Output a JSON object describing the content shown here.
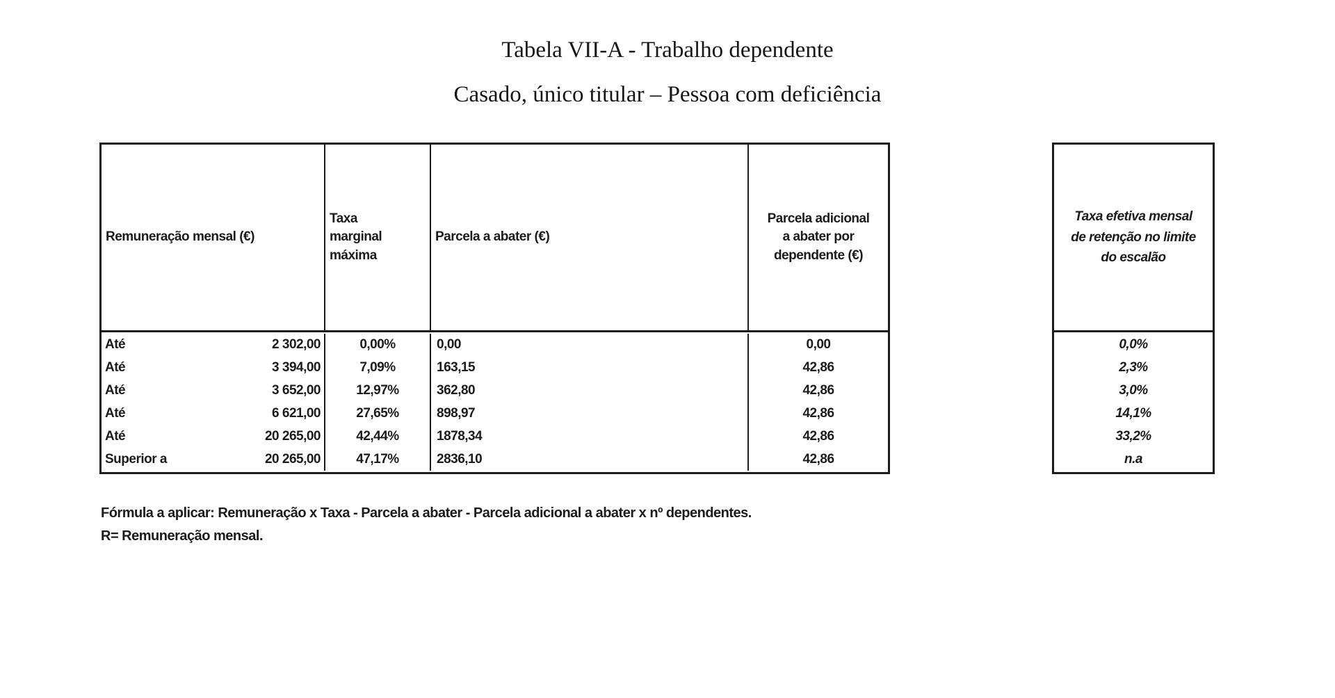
{
  "page": {
    "title": "Tabela VII-A - Trabalho dependente",
    "subtitle": "Casado, único titular – Pessoa com deficiência"
  },
  "main_table": {
    "headers": {
      "remuneration": "Remuneração mensal (€)",
      "marginal_rate": "Taxa\nmarginal\nmáxima",
      "deduction": "Parcela a abater (€)",
      "dependent_deduction": "Parcela adicional\na abater por\ndependente (€)"
    },
    "rows": [
      {
        "prefix": "Até",
        "limit": "2 302,00",
        "rate": "0,00%",
        "deduction": "0,00",
        "dependent_deduction": "0,00"
      },
      {
        "prefix": "Até",
        "limit": "3 394,00",
        "rate": "7,09%",
        "deduction": "163,15",
        "dependent_deduction": "42,86"
      },
      {
        "prefix": "Até",
        "limit": "3 652,00",
        "rate": "12,97%",
        "deduction": "362,80",
        "dependent_deduction": "42,86"
      },
      {
        "prefix": "Até",
        "limit": "6 621,00",
        "rate": "27,65%",
        "deduction": "898,97",
        "dependent_deduction": "42,86"
      },
      {
        "prefix": "Até",
        "limit": "20 265,00",
        "rate": "42,44%",
        "deduction": "1878,34",
        "dependent_deduction": "42,86"
      },
      {
        "prefix": "Superior a",
        "limit": "20 265,00",
        "rate": "47,17%",
        "deduction": "2836,10",
        "dependent_deduction": "42,86"
      }
    ]
  },
  "effective_rate_table": {
    "header": "Taxa efetiva mensal\nde retenção no limite\ndo escalão",
    "values": [
      "0,0%",
      "2,3%",
      "3,0%",
      "14,1%",
      "33,2%",
      "n.a"
    ]
  },
  "footer": {
    "formula": "Fórmula a aplicar: Remuneração x Taxa - Parcela a abater - Parcela adicional a abater x nº dependentes.",
    "note": "R= Remuneração mensal."
  },
  "colors": {
    "text": "#1c1c1c",
    "border": "#1c1c1c",
    "background": "#ffffff"
  }
}
